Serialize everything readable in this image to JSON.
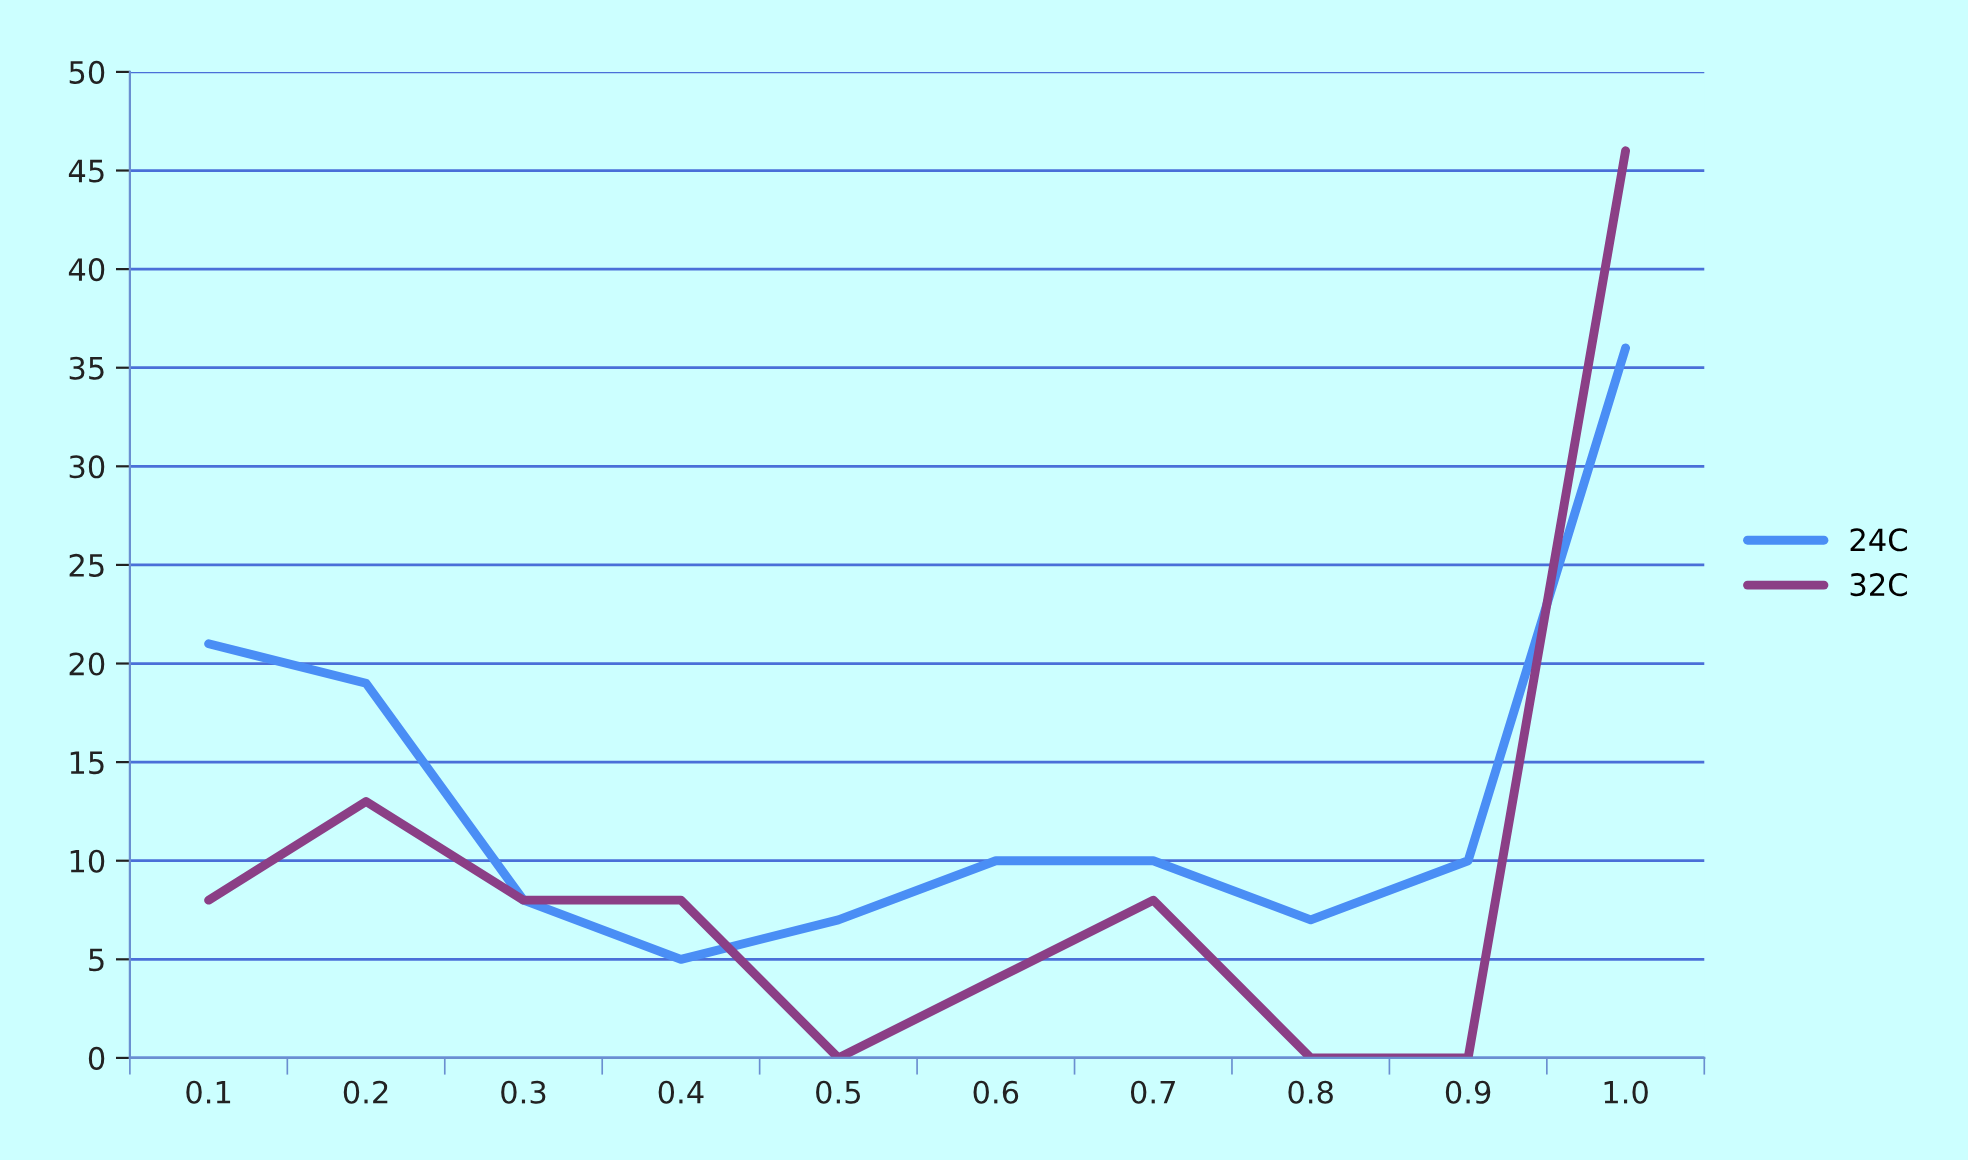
{
  "chart_data": {
    "type": "line",
    "categories": [
      "0.1",
      "0.2",
      "0.3",
      "0.4",
      "0.5",
      "0.6",
      "0.7",
      "0.8",
      "0.9",
      "1.0"
    ],
    "series": [
      {
        "name": "24C",
        "color": "#4a8ef5",
        "values": [
          21,
          19,
          8,
          5,
          7,
          10,
          10,
          7,
          10,
          36
        ]
      },
      {
        "name": "32C",
        "color": "#8b3f86",
        "values": [
          8,
          13,
          8,
          8,
          0,
          4,
          8,
          0,
          0,
          46
        ]
      }
    ],
    "ylim": [
      0,
      50
    ],
    "yticks": [
      0,
      5,
      10,
      15,
      20,
      25,
      30,
      35,
      40,
      45,
      50
    ],
    "grid": "y",
    "legend": "right",
    "marker": "none",
    "line_style": "solid"
  }
}
